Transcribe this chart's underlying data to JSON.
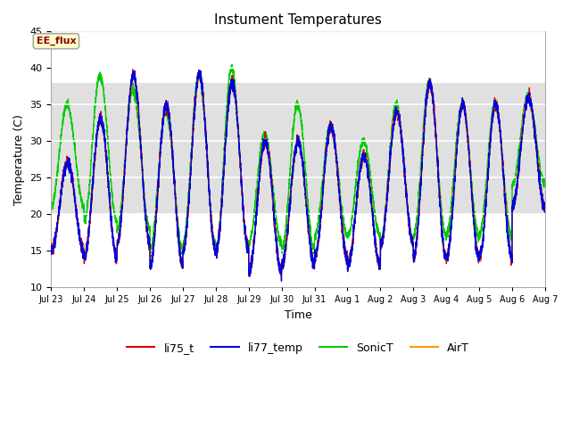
{
  "title": "Instument Temperatures",
  "xlabel": "Time",
  "ylabel": "Temperature (C)",
  "ylim": [
    10,
    45
  ],
  "xlim": [
    0,
    15
  ],
  "fig_bg_color": "#ffffff",
  "plot_bg_color": "#ffffff",
  "grid_color": "#d8d8d8",
  "band_color": "#e0e0e0",
  "band_ymin": 20,
  "band_ymax": 38,
  "annotation_text": "EE_flux",
  "annotation_bg": "#ffffcc",
  "annotation_border": "#aaaaaa",
  "annotation_text_color": "#880000",
  "series_colors": {
    "li75_t": "#dd0000",
    "li77_temp": "#0000dd",
    "SonicT": "#00cc00",
    "AirT": "#ff9900"
  },
  "xtick_labels": [
    "Jul 23",
    "Jul 24",
    "Jul 25",
    "Jul 26",
    "Jul 27",
    "Jul 28",
    "Jul 29",
    "Jul 30",
    "Jul 31",
    "Aug 1",
    "Aug 2",
    "Aug 3",
    "Aug 4",
    "Aug 5",
    "Aug 6",
    "Aug 7"
  ],
  "xtick_positions": [
    0,
    1,
    2,
    3,
    4,
    5,
    6,
    7,
    8,
    9,
    10,
    11,
    12,
    13,
    14,
    15
  ],
  "days": 15,
  "day_peaks": [
    27,
    33,
    39,
    35,
    39,
    38,
    30,
    30,
    32,
    28,
    34,
    38,
    35,
    35,
    36
  ],
  "day_troughs": [
    15,
    14,
    16,
    13,
    15,
    15,
    12,
    13,
    14,
    13,
    16,
    14,
    14,
    14,
    21
  ],
  "sonic_peaks": [
    35,
    39,
    37,
    34,
    39,
    40,
    31,
    35,
    32,
    30,
    35,
    38,
    35,
    35,
    36
  ],
  "sonic_troughs": [
    21,
    19,
    18,
    15,
    16,
    15,
    16,
    15,
    17,
    17,
    16,
    17,
    17,
    17,
    24
  ]
}
